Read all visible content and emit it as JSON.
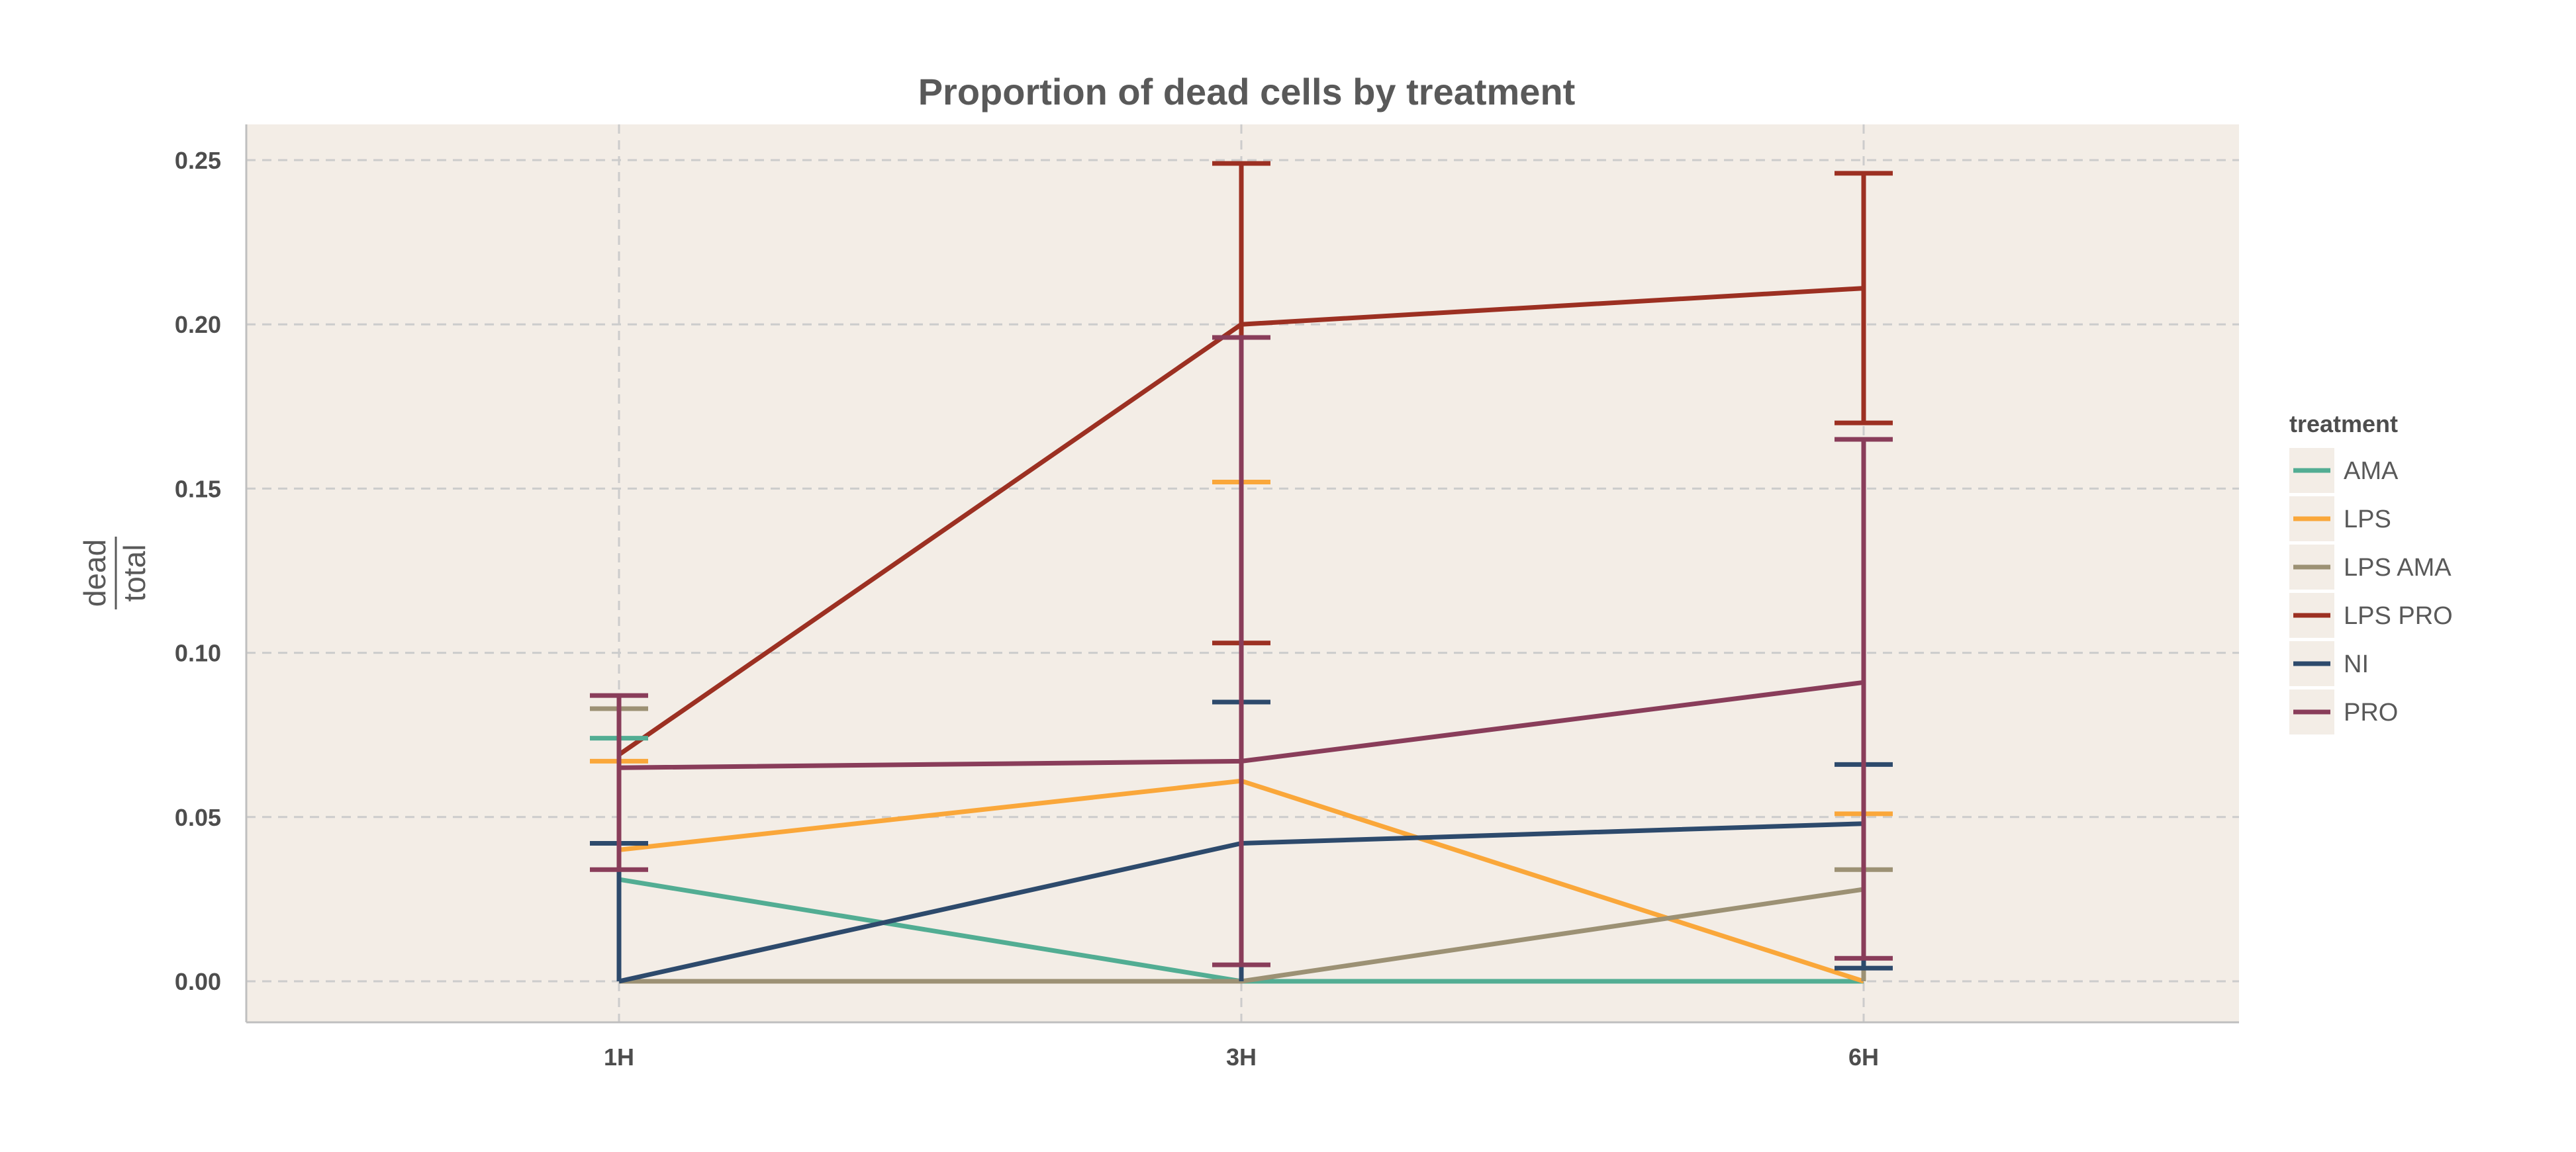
{
  "chart_data": {
    "type": "line",
    "title": "Proportion of dead cells by treatment",
    "ylabel_numerator": "dead",
    "ylabel_denominator": "total",
    "xlabel": "",
    "categories": [
      "1H",
      "3H",
      "6H"
    ],
    "yticks": [
      "0.00",
      "0.05",
      "0.10",
      "0.15",
      "0.20",
      "0.25"
    ],
    "ytick_values": [
      0,
      0.05,
      0.1,
      0.15,
      0.2,
      0.25
    ],
    "ylim": [
      -0.012,
      0.261
    ],
    "grid": true,
    "legend": {
      "title": "treatment",
      "placement": "right"
    },
    "colors": {
      "panel_background": "#f3ede6",
      "grid": "#cccccc",
      "axis": "#bfbfbf"
    },
    "series": [
      {
        "name": "AMA",
        "color": "#52ad93",
        "values": [
          0.031,
          0.0,
          0.0
        ],
        "error_upper": [
          0.074,
          null,
          null
        ],
        "error_lower": [
          null,
          null,
          null
        ]
      },
      {
        "name": "LPS",
        "color": "#faa73a",
        "values": [
          0.04,
          0.061,
          0.0
        ],
        "error_upper": [
          0.067,
          0.152,
          0.051
        ],
        "error_lower": [
          null,
          null,
          null
        ]
      },
      {
        "name": "LPS AMA",
        "color": "#9c9174",
        "values": [
          0.0,
          0.0,
          0.028
        ],
        "error_upper": [
          0.083,
          null,
          0.034
        ],
        "error_lower": [
          null,
          null,
          null
        ]
      },
      {
        "name": "LPS PRO",
        "color": "#9c3022",
        "values": [
          0.069,
          0.2,
          0.211
        ],
        "error_upper": [
          null,
          0.249,
          0.246
        ],
        "error_lower": [
          null,
          0.103,
          0.17
        ]
      },
      {
        "name": "NI",
        "color": "#2d4a6c",
        "values": [
          0.0,
          0.042,
          0.048
        ],
        "error_upper": [
          0.042,
          0.085,
          0.066
        ],
        "error_lower": [
          null,
          null,
          0.004
        ]
      },
      {
        "name": "PRO",
        "color": "#893d5a",
        "values": [
          0.065,
          0.067,
          0.091
        ],
        "error_upper": [
          0.087,
          0.196,
          0.165
        ],
        "error_lower": [
          0.034,
          0.005,
          0.007
        ]
      }
    ]
  }
}
